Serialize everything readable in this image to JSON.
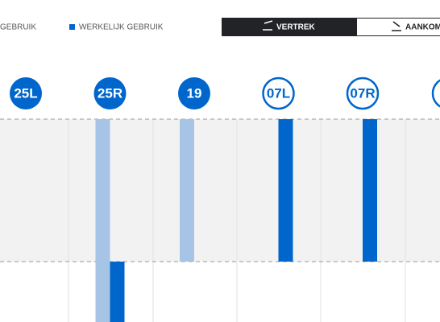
{
  "legend": {
    "planned": "GEBRUIK",
    "actual": "WERKELIJK GEBRUIK"
  },
  "tabs": {
    "departure": "VERTREK",
    "arrival": "AANKOM"
  },
  "runways": [
    {
      "label": "25L",
      "style": "filled",
      "planned": [
        0,
        0
      ],
      "actual": [
        0,
        0
      ]
    },
    {
      "label": "25R",
      "style": "filled",
      "planned": [
        1,
        1
      ],
      "actual": [
        0,
        1
      ]
    },
    {
      "label": "19",
      "style": "filled",
      "planned": [
        1,
        0
      ],
      "actual": [
        0,
        0
      ]
    },
    {
      "label": "07L",
      "style": "outlined",
      "planned": [
        0,
        0
      ],
      "actual": [
        1,
        0
      ]
    },
    {
      "label": "07R",
      "style": "outlined",
      "planned": [
        0,
        0
      ],
      "actual": [
        1,
        0
      ]
    }
  ]
}
